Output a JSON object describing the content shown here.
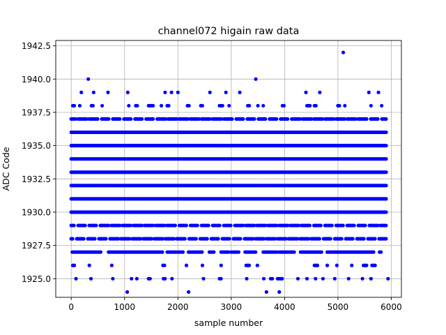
{
  "chart_data": {
    "type": "scatter",
    "title": "channel072 higain raw data",
    "xlabel": "sample number",
    "ylabel": "ADC Code",
    "xlim": [
      -290,
      6190
    ],
    "ylim": [
      1923.6,
      1942.9
    ],
    "x_ticks": [
      0,
      1000,
      2000,
      3000,
      4000,
      5000,
      6000
    ],
    "y_ticks": [
      1925.0,
      1927.5,
      1930.0,
      1932.5,
      1935.0,
      1937.5,
      1940.0,
      1942.5
    ],
    "x_tick_labels": [
      "0",
      "1000",
      "2000",
      "3000",
      "4000",
      "5000",
      "6000"
    ],
    "y_tick_labels": [
      "1925.0",
      "1927.5",
      "1930.0",
      "1932.5",
      "1935.0",
      "1937.5",
      "1940.0",
      "1942.5"
    ],
    "grid": true,
    "marker_color": "#0000ff",
    "sample_range": [
      0,
      5920
    ],
    "dense_levels": [
      1930,
      1931,
      1932,
      1933,
      1934,
      1935,
      1936
    ],
    "medium_levels": [
      1928,
      1929,
      1937
    ],
    "level_bands": [
      {
        "y": 1942,
        "x_ranges": [
          [
            5100,
            5100
          ]
        ]
      },
      {
        "y": 1940,
        "x_ranges": [
          [
            320,
            320
          ],
          [
            3460,
            3460
          ]
        ]
      },
      {
        "y": 1939,
        "x_ranges": [
          [
            190,
            190
          ],
          [
            420,
            420
          ],
          [
            690,
            690
          ],
          [
            1060,
            1060
          ],
          [
            1760,
            1760
          ],
          [
            1880,
            1880
          ],
          [
            2000,
            2000
          ],
          [
            2600,
            2600
          ],
          [
            2900,
            2900
          ],
          [
            3160,
            3160
          ],
          [
            4400,
            4400
          ],
          [
            4660,
            4660
          ],
          [
            5580,
            5580
          ],
          [
            5760,
            5760
          ]
        ]
      },
      {
        "y": 1938,
        "x_ranges": [
          [
            30,
            60
          ],
          [
            160,
            160
          ],
          [
            380,
            420
          ],
          [
            580,
            580
          ],
          [
            1080,
            1080
          ],
          [
            1210,
            1260
          ],
          [
            1450,
            1560
          ],
          [
            1690,
            1700
          ],
          [
            1800,
            1830
          ],
          [
            2180,
            2210
          ],
          [
            2430,
            2460
          ],
          [
            2780,
            2860
          ],
          [
            2960,
            2960
          ],
          [
            3310,
            3360
          ],
          [
            3500,
            3500
          ],
          [
            3600,
            3600
          ],
          [
            3960,
            4000
          ],
          [
            4420,
            4500
          ],
          [
            4560,
            4600
          ],
          [
            5000,
            5030
          ],
          [
            5130,
            5130
          ],
          [
            5620,
            5640
          ],
          [
            5820,
            5820
          ]
        ]
      },
      {
        "y": 1927,
        "x_ranges": [
          [
            20,
            560
          ],
          [
            700,
            1720
          ],
          [
            1800,
            1990
          ],
          [
            2010,
            2110
          ],
          [
            2200,
            2470
          ],
          [
            2590,
            2700
          ],
          [
            2810,
            2970
          ],
          [
            3000,
            3160
          ],
          [
            3260,
            3480
          ],
          [
            3600,
            3860
          ],
          [
            3900,
            4200
          ],
          [
            4300,
            4700
          ],
          [
            4800,
            5680
          ],
          [
            5780,
            5830
          ]
        ]
      },
      {
        "y": 1926,
        "x_ranges": [
          [
            30,
            80
          ],
          [
            340,
            340
          ],
          [
            760,
            760
          ],
          [
            1720,
            1760
          ],
          [
            2160,
            2160
          ],
          [
            2460,
            2460
          ],
          [
            2810,
            2820
          ],
          [
            3280,
            3350
          ],
          [
            3490,
            3490
          ],
          [
            4560,
            4640
          ],
          [
            4800,
            4800
          ],
          [
            4980,
            5000
          ],
          [
            5260,
            5260
          ],
          [
            5480,
            5560
          ],
          [
            5640,
            5700
          ]
        ]
      },
      {
        "y": 1925,
        "x_ranges": [
          [
            90,
            90
          ],
          [
            370,
            370
          ],
          [
            780,
            780
          ],
          [
            1130,
            1130
          ],
          [
            1230,
            1230
          ],
          [
            1450,
            1480
          ],
          [
            1730,
            1760
          ],
          [
            1890,
            1890
          ],
          [
            2480,
            2480
          ],
          [
            2780,
            2810
          ],
          [
            3290,
            3310
          ],
          [
            3610,
            3620
          ],
          [
            3740,
            3780
          ],
          [
            3870,
            3960
          ],
          [
            4250,
            4250
          ],
          [
            4420,
            4420
          ],
          [
            4580,
            4580
          ],
          [
            4720,
            4720
          ],
          [
            4940,
            4940
          ],
          [
            5200,
            5220
          ],
          [
            5460,
            5460
          ],
          [
            5620,
            5640
          ],
          [
            5940,
            5940
          ]
        ]
      },
      {
        "y": 1924,
        "x_ranges": [
          [
            1050,
            1050
          ],
          [
            2200,
            2200
          ],
          [
            3660,
            3660
          ],
          [
            3900,
            3900
          ]
        ]
      }
    ]
  }
}
